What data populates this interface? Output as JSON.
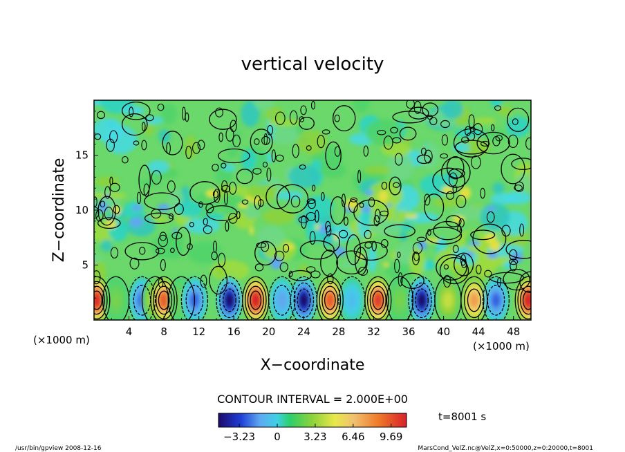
{
  "chart_data": {
    "type": "heatmap",
    "title": "vertical velocity",
    "xlabel": "X−coordinate",
    "ylabel": "Z−coordinate",
    "x_unit_left": "(×1000 m)",
    "x_unit_right": "(×1000 m)",
    "xlim": [
      0,
      50
    ],
    "ylim": [
      0,
      20
    ],
    "x_ticks": [
      "4",
      "8",
      "12",
      "16",
      "20",
      "24",
      "28",
      "32",
      "36",
      "40",
      "44",
      "48"
    ],
    "y_ticks": [
      "5",
      "10",
      "15"
    ],
    "contour_interval_label": "CONTOUR INTERVAL = 2.000E+00",
    "time_label": "t=8001 s",
    "colorbar": {
      "range": [
        -5.0,
        11.0
      ],
      "ticks": [
        "−3.23",
        "0",
        "3.23",
        "6.46",
        "9.69"
      ],
      "tick_values": [
        -3.23,
        0,
        3.23,
        6.46,
        9.69
      ]
    },
    "cells": [
      {
        "x": 0.3,
        "value": 9.5
      },
      {
        "x": 2.5,
        "value": 1.0
      },
      {
        "x": 5.5,
        "value": -4.0
      },
      {
        "x": 7.0,
        "value": 2.5
      },
      {
        "x": 8.0,
        "value": 8.0
      },
      {
        "x": 10.0,
        "value": 1.0
      },
      {
        "x": 11.5,
        "value": -4.0
      },
      {
        "x": 15.5,
        "value": -6.0
      },
      {
        "x": 18.5,
        "value": 10.0
      },
      {
        "x": 21.5,
        "value": -3.0
      },
      {
        "x": 24.0,
        "value": -6.0
      },
      {
        "x": 27.0,
        "value": 8.0
      },
      {
        "x": 29.5,
        "value": -2.0
      },
      {
        "x": 32.5,
        "value": 9.0
      },
      {
        "x": 35.0,
        "value": 1.0
      },
      {
        "x": 37.5,
        "value": -6.0
      },
      {
        "x": 40.5,
        "value": 2.5
      },
      {
        "x": 43.5,
        "value": 6.0
      },
      {
        "x": 46.0,
        "value": -4.0
      },
      {
        "x": 49.7,
        "value": 10.0
      }
    ]
  },
  "footer": {
    "left": "/usr/bin/gpview   2008-12-16",
    "right": "MarsCond_VelZ.nc@VelZ,x=0:50000,z=0:20000,t=8001"
  }
}
